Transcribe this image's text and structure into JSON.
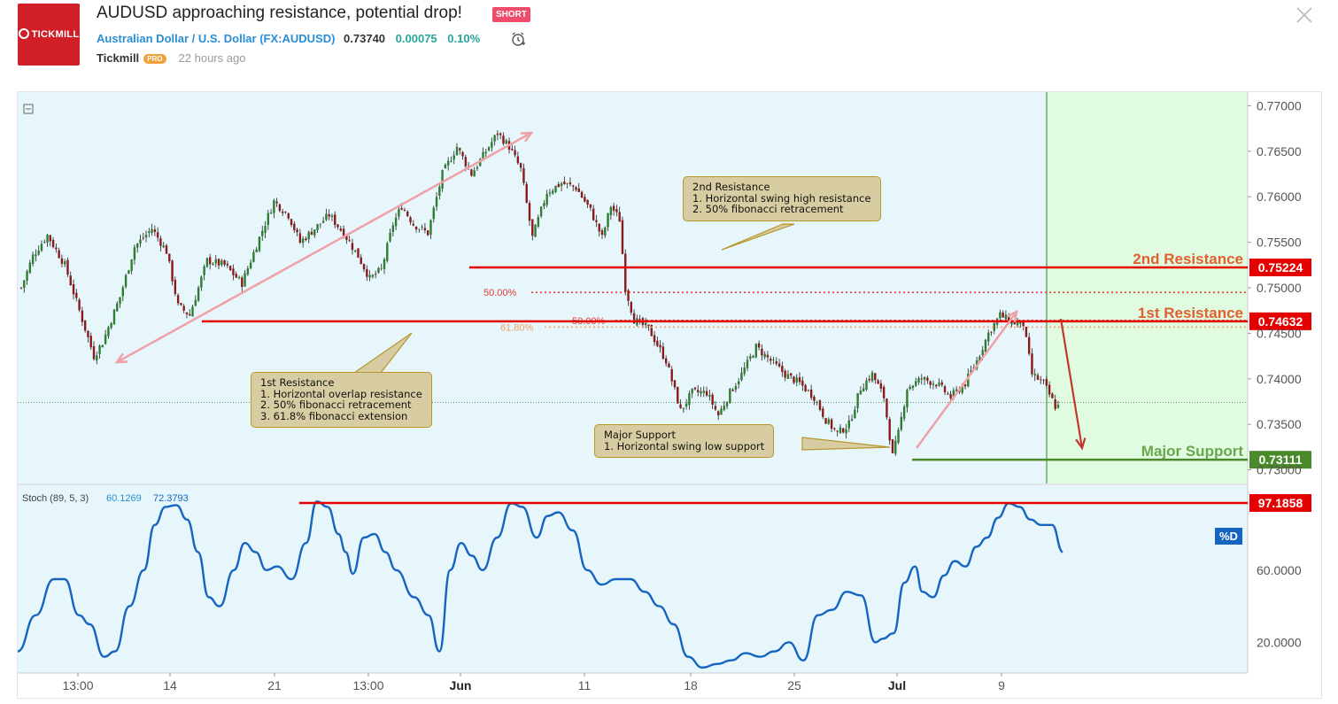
{
  "header": {
    "logo_text": "TICKMILL",
    "title": "AUDUSD approaching resistance, potential drop!",
    "badge": "SHORT",
    "symbol_name": "Australian Dollar / U.S. Dollar (FX:AUDUSD)",
    "price": "0.73740",
    "change": "0.00075",
    "change_pct": "0.10%",
    "author": "Tickmill",
    "author_badge": "PRO",
    "time_ago": "22 hours ago"
  },
  "icons": [
    "alarm-clock-icon",
    "close-icon",
    "collapse-icon"
  ],
  "colors": {
    "resistance_red": "#e50000",
    "support_green": "#4a8a2a",
    "bull_candle": "#2e7d32",
    "bear_candle": "#8b1a1a",
    "stoch_line": "#1565c0",
    "price_bg": "#e6f6fb",
    "projection_bg": "#e1fbe1",
    "annotation_bg": "#d8cda2"
  },
  "chart_data": {
    "type": "candlestick",
    "symbol": "FX:AUDUSD",
    "x_tick_labels": [
      "13:00",
      "14",
      "21",
      "13:00",
      "Jun",
      "11",
      "18",
      "25",
      "Jul",
      "9"
    ],
    "price_axis": {
      "ylim": [
        0.7285,
        0.7715
      ],
      "tick_labels": [
        "0.77000",
        "0.76500",
        "0.76000",
        "0.75500",
        "0.75000",
        "0.74500",
        "0.74000",
        "0.73500",
        "0.73000"
      ]
    },
    "series": [
      {
        "name": "AUDUSD",
        "close_path": [
          [
            0,
            0.75
          ],
          [
            4,
            0.7535
          ],
          [
            9,
            0.7558
          ],
          [
            15,
            0.7525
          ],
          [
            21,
            0.7465
          ],
          [
            25,
            0.7425
          ],
          [
            28,
            0.744
          ],
          [
            34,
            0.749
          ],
          [
            39,
            0.7545
          ],
          [
            45,
            0.7565
          ],
          [
            50,
            0.754
          ],
          [
            54,
            0.748
          ],
          [
            58,
            0.747
          ],
          [
            64,
            0.753
          ],
          [
            70,
            0.7525
          ],
          [
            76,
            0.7505
          ],
          [
            82,
            0.7555
          ],
          [
            87,
            0.7595
          ],
          [
            92,
            0.758
          ],
          [
            96,
            0.755
          ],
          [
            101,
            0.7565
          ],
          [
            106,
            0.758
          ],
          [
            111,
            0.756
          ],
          [
            116,
            0.7535
          ],
          [
            120,
            0.751
          ],
          [
            124,
            0.752
          ],
          [
            128,
            0.757
          ],
          [
            131,
            0.759
          ],
          [
            135,
            0.757
          ],
          [
            140,
            0.756
          ],
          [
            145,
            0.7625
          ],
          [
            150,
            0.7655
          ],
          [
            155,
            0.7625
          ],
          [
            160,
            0.765
          ],
          [
            164,
            0.767
          ],
          [
            168,
            0.7655
          ],
          [
            172,
            0.763
          ],
          [
            176,
            0.7555
          ],
          [
            181,
            0.7605
          ],
          [
            186,
            0.7615
          ],
          [
            191,
            0.761
          ],
          [
            196,
            0.7585
          ],
          [
            200,
            0.7555
          ],
          [
            203,
            0.759
          ],
          [
            206,
            0.7575
          ],
          [
            208,
            0.75
          ],
          [
            211,
            0.7465
          ],
          [
            216,
            0.7455
          ],
          [
            222,
            0.742
          ],
          [
            227,
            0.7365
          ],
          [
            231,
            0.7385
          ],
          [
            236,
            0.7385
          ],
          [
            240,
            0.736
          ],
          [
            244,
            0.7385
          ],
          [
            248,
            0.7405
          ],
          [
            253,
            0.7435
          ],
          [
            258,
            0.742
          ],
          [
            263,
            0.7405
          ],
          [
            268,
            0.7395
          ],
          [
            273,
            0.738
          ],
          [
            277,
            0.7355
          ],
          [
            281,
            0.734
          ],
          [
            285,
            0.735
          ],
          [
            289,
            0.739
          ],
          [
            293,
            0.7405
          ],
          [
            297,
            0.738
          ],
          [
            300,
            0.7315
          ],
          [
            302,
            0.734
          ],
          [
            305,
            0.739
          ],
          [
            310,
            0.74
          ],
          [
            315,
            0.7395
          ],
          [
            320,
            0.738
          ],
          [
            325,
            0.7395
          ],
          [
            329,
            0.742
          ],
          [
            333,
            0.745
          ],
          [
            337,
            0.747
          ],
          [
            341,
            0.7462
          ],
          [
            345,
            0.746
          ],
          [
            348,
            0.7405
          ],
          [
            352,
            0.7395
          ],
          [
            356,
            0.737
          ]
        ]
      }
    ],
    "levels": [
      {
        "name": "2nd Resistance",
        "value": 0.75224,
        "label": "0.75224",
        "color": "#e50000"
      },
      {
        "name": "1st Resistance",
        "value": 0.74632,
        "label": "0.74632",
        "color": "#e50000"
      },
      {
        "name": "Major Support",
        "value": 0.73111,
        "label": "0.73111",
        "color": "#4a8a2a"
      }
    ],
    "fib_levels": [
      {
        "label": "50.00%",
        "value": 0.7495
      },
      {
        "label": "50.00%",
        "value": 0.74642
      },
      {
        "label": "61.80%",
        "value": 0.74568
      }
    ],
    "current_price": 0.7374,
    "stochastic": {
      "label": "Stoch (89, 5, 3)",
      "value_k": "60.1269",
      "value_d": "72.3793",
      "series_tag": "%D",
      "ylim": [
        3,
        107
      ],
      "tick_labels": [
        "60.0000",
        "20.0000"
      ],
      "level": {
        "value": 97.1858,
        "label": "97.1858"
      },
      "d_path": [
        [
          0,
          15
        ],
        [
          5,
          35
        ],
        [
          10,
          55
        ],
        [
          13,
          55
        ],
        [
          17,
          35
        ],
        [
          20,
          30
        ],
        [
          24,
          12
        ],
        [
          27,
          15
        ],
        [
          31,
          40
        ],
        [
          35,
          60
        ],
        [
          38,
          85
        ],
        [
          41,
          95
        ],
        [
          44,
          96
        ],
        [
          47,
          88
        ],
        [
          50,
          70
        ],
        [
          53,
          45
        ],
        [
          56,
          40
        ],
        [
          60,
          60
        ],
        [
          63,
          75
        ],
        [
          66,
          70
        ],
        [
          69,
          60
        ],
        [
          72,
          62
        ],
        [
          76,
          55
        ],
        [
          80,
          75
        ],
        [
          83,
          98
        ],
        [
          86,
          95
        ],
        [
          89,
          80
        ],
        [
          91,
          70
        ],
        [
          93,
          58
        ],
        [
          96,
          78
        ],
        [
          99,
          80
        ],
        [
          102,
          70
        ],
        [
          105,
          60
        ],
        [
          110,
          45
        ],
        [
          114,
          35
        ],
        [
          117,
          15
        ],
        [
          120,
          60
        ],
        [
          123,
          75
        ],
        [
          126,
          68
        ],
        [
          129,
          60
        ],
        [
          133,
          78
        ],
        [
          137,
          97
        ],
        [
          140,
          95
        ],
        [
          144,
          78
        ],
        [
          147,
          90
        ],
        [
          150,
          92
        ],
        [
          154,
          82
        ],
        [
          158,
          60
        ],
        [
          162,
          52
        ],
        [
          166,
          55
        ],
        [
          170,
          55
        ],
        [
          174,
          48
        ],
        [
          178,
          40
        ],
        [
          182,
          30
        ],
        [
          186,
          12
        ],
        [
          190,
          6
        ],
        [
          194,
          8
        ],
        [
          198,
          10
        ],
        [
          202,
          14
        ],
        [
          206,
          12
        ],
        [
          210,
          15
        ],
        [
          214,
          20
        ],
        [
          218,
          10
        ],
        [
          222,
          35
        ],
        [
          226,
          38
        ],
        [
          230,
          48
        ],
        [
          234,
          46
        ],
        [
          238,
          20
        ],
        [
          240,
          22
        ],
        [
          243,
          25
        ],
        [
          246,
          53
        ],
        [
          249,
          62
        ],
        [
          251,
          48
        ],
        [
          254,
          45
        ],
        [
          257,
          57
        ],
        [
          260,
          65
        ],
        [
          263,
          62
        ],
        [
          266,
          73
        ],
        [
          269,
          78
        ],
        [
          272,
          89
        ],
        [
          275,
          97
        ],
        [
          278,
          95
        ],
        [
          281,
          88
        ],
        [
          284,
          85
        ],
        [
          287,
          85
        ],
        [
          290,
          70
        ]
      ]
    },
    "annotations": [
      {
        "text": "2nd Resistance\n1. Horizontal swing high resistance\n2. 50% fibonacci retracement"
      },
      {
        "text": "1st Resistance\n1. Horizontal overlap resistance\n2. 50% fibonacci retracement\n3. 61.8% fibonacci extension"
      },
      {
        "text": "Major Support\n1. Horizontal swing low support"
      }
    ],
    "level_labels": [
      "2nd Resistance",
      "1st Resistance",
      "Major Support"
    ]
  }
}
